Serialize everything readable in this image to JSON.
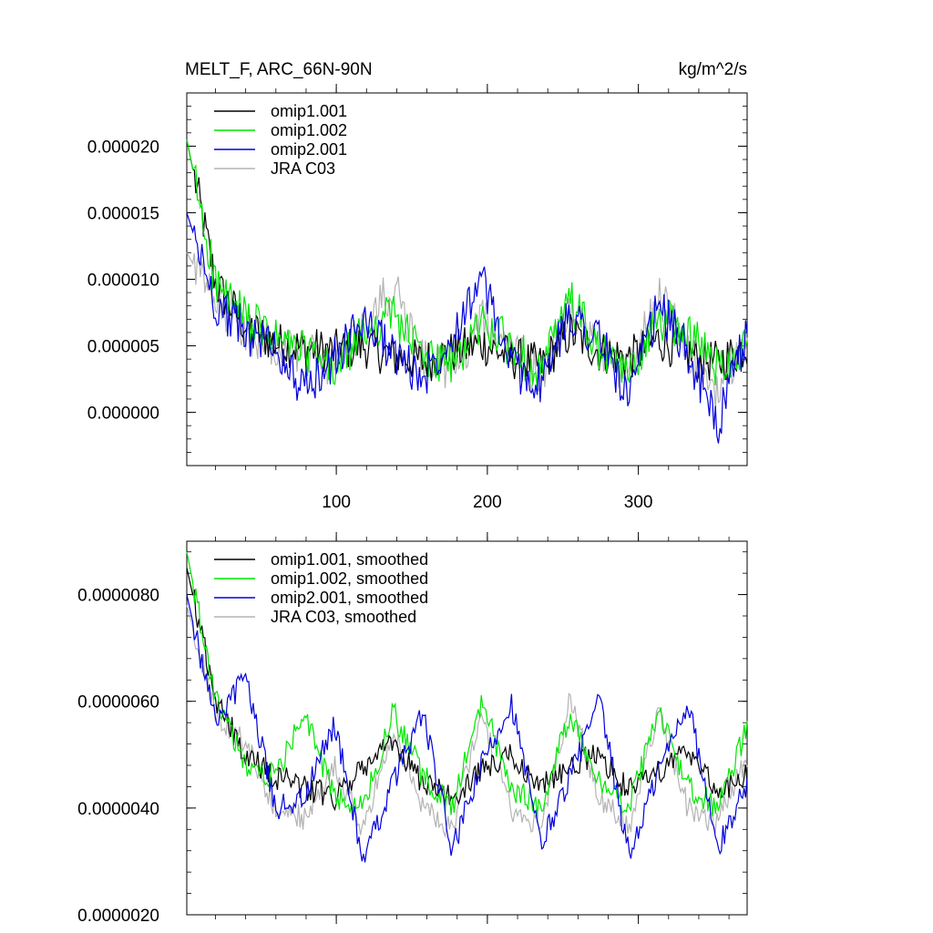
{
  "chart_data": [
    {
      "type": "line",
      "title": "MELT_F, ARC_66N-90N",
      "units": "kg/m^2/s",
      "xlim": [
        1,
        372
      ],
      "ylim": [
        -4e-06,
        2.4e-05
      ],
      "y_ticks": [
        0.0,
        5e-06,
        1e-05,
        1.5e-05,
        2e-05
      ],
      "y_tick_labels": [
        "0.000000",
        "0.000005",
        "0.000010",
        "0.000015",
        "0.000020"
      ],
      "x_ticks": [
        100,
        200,
        300
      ],
      "x_tick_labels": [
        "100",
        "200",
        "300"
      ],
      "legend_position": "top-left",
      "series": [
        {
          "name": "omip1.001",
          "color": "#000000",
          "values": [
            2.05e-05,
            9.5e-06,
            6.5e-06,
            5.2e-06,
            4.8e-06,
            4.6e-06,
            5e-06,
            4.2e-06,
            3.8e-06,
            4.5e-06,
            5.2e-06,
            4.1e-06,
            3.5e-06,
            6e-06,
            4.6e-06,
            4e-06,
            5.5e-06,
            4.4e-06,
            3.7e-06,
            5e-06
          ]
        },
        {
          "name": "omip1.002",
          "color": "#00e600",
          "values": [
            2.05e-05,
            9.5e-06,
            7e-06,
            5.5e-06,
            4.5e-06,
            3e-06,
            6e-06,
            7.5e-06,
            4.2e-06,
            3.5e-06,
            6.8e-06,
            5e-06,
            3e-06,
            8.5e-06,
            4.5e-06,
            2.8e-06,
            7.2e-06,
            6e-06,
            3.5e-06,
            5e-06
          ]
        },
        {
          "name": "omip2.001",
          "color": "#0000dd",
          "values": [
            1.5e-05,
            8e-06,
            6e-06,
            5e-06,
            1.5e-06,
            4e-06,
            7e-06,
            4.5e-06,
            2.5e-06,
            6e-06,
            1e-05,
            3.5e-06,
            2e-06,
            7.5e-06,
            5.5e-06,
            1e-06,
            8e-06,
            4.5e-06,
            -1e-06,
            6e-06
          ]
        },
        {
          "name": "JRA C03",
          "color": "#b4b4b4",
          "values": [
            1.2e-05,
            8e-06,
            6e-06,
            5e-06,
            4.5e-06,
            3.5e-06,
            6.5e-06,
            9.5e-06,
            4e-06,
            3e-06,
            7e-06,
            5e-06,
            2.5e-06,
            8e-06,
            4.5e-06,
            3e-06,
            9e-06,
            4.5e-06,
            1.5e-06,
            5.5e-06
          ]
        }
      ]
    },
    {
      "type": "line",
      "title": "",
      "ylim": [
        2e-06,
        9e-06
      ],
      "y_ticks": [
        2e-06,
        4e-06,
        6e-06,
        8e-06
      ],
      "y_tick_labels": [
        "0.0000020",
        "0.0000040",
        "0.0000060",
        "0.0000080"
      ],
      "xlim": [
        1,
        372
      ],
      "legend_position": "top-left",
      "series": [
        {
          "name": "omip1.001, smoothed",
          "color": "#000000",
          "values": [
            8.5e-06,
            6e-06,
            5e-06,
            4.6e-06,
            4.4e-06,
            4.2e-06,
            4.8e-06,
            5.2e-06,
            4.5e-06,
            4.2e-06,
            4.7e-06,
            5e-06,
            4.4e-06,
            4.8e-06,
            5e-06,
            4.3e-06,
            4.7e-06,
            5.1e-06,
            4.3e-06,
            4.6e-06
          ]
        },
        {
          "name": "omip1.002, smoothed",
          "color": "#00e600",
          "values": [
            8.8e-06,
            6e-06,
            4.8e-06,
            4.6e-06,
            5.8e-06,
            4.2e-06,
            4e-06,
            5.8e-06,
            4.6e-06,
            4e-06,
            6e-06,
            4.4e-06,
            4e-06,
            5.8e-06,
            4.5e-06,
            4e-06,
            5.8e-06,
            4.4e-06,
            4e-06,
            5.5e-06
          ]
        },
        {
          "name": "omip2.001, smoothed",
          "color": "#0000dd",
          "values": [
            8e-06,
            5.5e-06,
            6.5e-06,
            4e-06,
            4.2e-06,
            5.6e-06,
            3e-06,
            4.5e-06,
            5.8e-06,
            3.2e-06,
            4.8e-06,
            6e-06,
            3.3e-06,
            4.6e-06,
            6e-06,
            3.1e-06,
            4.7e-06,
            6e-06,
            3.2e-06,
            4.5e-06
          ]
        },
        {
          "name": "JRA C03, smoothed",
          "color": "#b4b4b4",
          "values": [
            7.8e-06,
            5.8e-06,
            5.2e-06,
            4e-06,
            3.8e-06,
            4.8e-06,
            3.6e-06,
            5.5e-06,
            4e-06,
            3.6e-06,
            5.8e-06,
            4e-06,
            3.7e-06,
            6e-06,
            4.2e-06,
            3.6e-06,
            5.8e-06,
            4e-06,
            3.7e-06,
            5e-06
          ]
        }
      ]
    }
  ]
}
